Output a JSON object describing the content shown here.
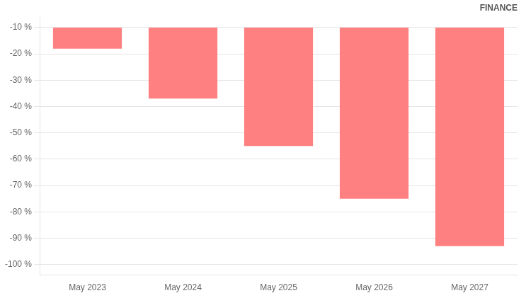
{
  "chart_data": {
    "type": "bar",
    "categories": [
      "May 2023",
      "May 2024",
      "May 2025",
      "May 2026",
      "May 2027"
    ],
    "values": [
      -18,
      -37,
      -55,
      -75,
      -93
    ],
    "bases": [
      -10,
      -10,
      -10,
      -10,
      -10
    ],
    "color": "#FF8080",
    "ylim": [
      -104,
      -6
    ],
    "yticks": [
      {
        "value": -10,
        "label": "-10 %"
      },
      {
        "value": -20,
        "label": "-20 %"
      },
      {
        "value": -30,
        "label": "-30 %"
      },
      {
        "value": -40,
        "label": "-40 %"
      },
      {
        "value": -50,
        "label": "-50 %"
      },
      {
        "value": -60,
        "label": "-60 %"
      },
      {
        "value": -70,
        "label": "-70 %"
      },
      {
        "value": -80,
        "label": "-80 %"
      },
      {
        "value": -90,
        "label": "-90 %"
      },
      {
        "value": -100,
        "label": "-100 %"
      }
    ],
    "grid": true,
    "annotations": [
      {
        "text": "FINANCE"
      }
    ]
  }
}
